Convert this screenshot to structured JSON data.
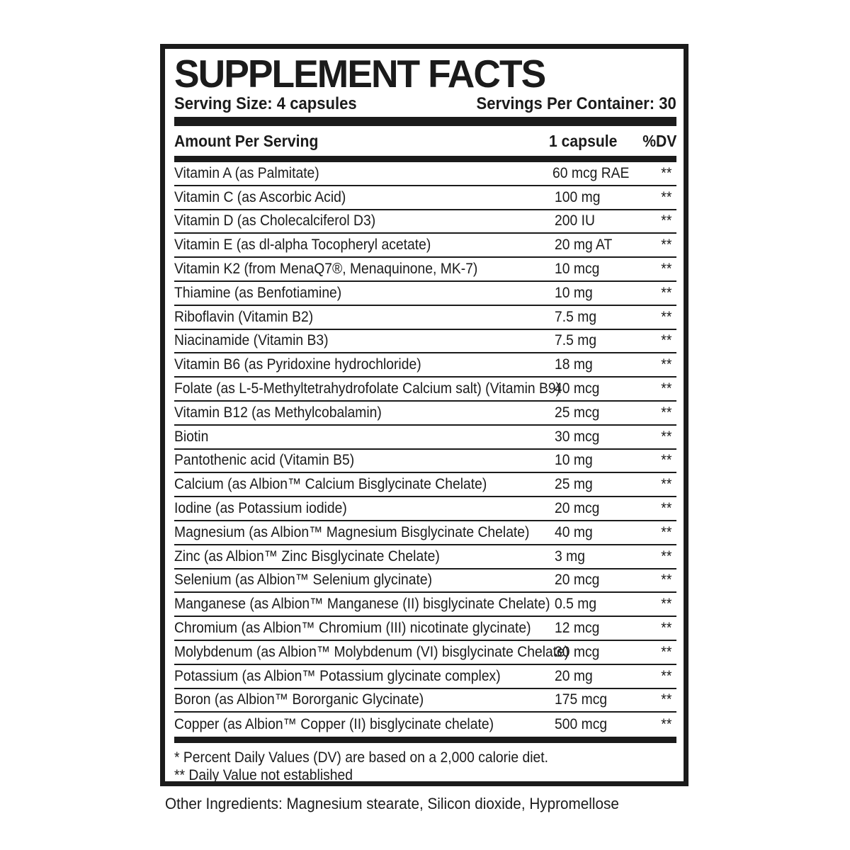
{
  "colors": {
    "ink": "#1b1b1b",
    "background": "#ffffff"
  },
  "header": {
    "title": "SUPPLEMENT FACTS",
    "serving_size": "Serving Size: 4 capsules",
    "servings_per_container": "Servings Per Container: 30"
  },
  "table": {
    "columns": {
      "nutrient": "Amount Per Serving",
      "amount": "1 capsule",
      "dv": "%DV"
    },
    "rows": [
      {
        "name": "Vitamin A (as Palmitate)",
        "amount": "60 mcg RAE",
        "dv": "**"
      },
      {
        "name": "Vitamin C (as Ascorbic Acid)",
        "amount": "100 mg",
        "dv": "**"
      },
      {
        "name": "Vitamin D (as Cholecalciferol D3)",
        "amount": "200 IU",
        "dv": "**"
      },
      {
        "name": "Vitamin E (as dl-alpha Tocopheryl acetate)",
        "amount": "20 mg AT",
        "dv": "**"
      },
      {
        "name": "Vitamin K2 (from MenaQ7®, Menaquinone, MK-7)",
        "amount": "10 mcg",
        "dv": "**"
      },
      {
        "name": "Thiamine (as Benfotiamine)",
        "amount": "10 mg",
        "dv": "**"
      },
      {
        "name": "Riboflavin (Vitamin B2)",
        "amount": "7.5 mg",
        "dv": "**"
      },
      {
        "name": "Niacinamide (Vitamin B3)",
        "amount": "7.5 mg",
        "dv": "**"
      },
      {
        "name": "Vitamin B6 (as Pyridoxine hydrochloride)",
        "amount": "18 mg",
        "dv": "**"
      },
      {
        "name": "Folate (as L-5-Methyltetrahydrofolate Calcium salt) (Vitamin B9)",
        "amount": "40 mcg",
        "dv": "**"
      },
      {
        "name": "Vitamin B12 (as Methylcobalamin)",
        "amount": "25 mcg",
        "dv": "**"
      },
      {
        "name": "Biotin",
        "amount": "30 mcg",
        "dv": "**"
      },
      {
        "name": "Pantothenic acid (Vitamin B5)",
        "amount": "10 mg",
        "dv": "**"
      },
      {
        "name": "Calcium (as Albion™ Calcium Bisglycinate Chelate)",
        "amount": "25 mg",
        "dv": "**"
      },
      {
        "name": "Iodine (as Potassium iodide)",
        "amount": "20 mcg",
        "dv": "**"
      },
      {
        "name": "Magnesium (as Albion™ Magnesium Bisglycinate Chelate)",
        "amount": "40 mg",
        "dv": "**"
      },
      {
        "name": "Zinc (as Albion™ Zinc Bisglycinate Chelate)",
        "amount": "3 mg",
        "dv": "**"
      },
      {
        "name": "Selenium (as Albion™ Selenium glycinate)",
        "amount": "20 mcg",
        "dv": "**"
      },
      {
        "name": "Manganese (as Albion™ Manganese (II) bisglycinate Chelate)",
        "amount": "0.5 mg",
        "dv": "**"
      },
      {
        "name": "Chromium (as Albion™ Chromium (III) nicotinate glycinate)",
        "amount": "12 mcg",
        "dv": "**"
      },
      {
        "name": "Molybdenum (as Albion™ Molybdenum (VI) bisglycinate Chelate)",
        "amount": "30 mcg",
        "dv": "**"
      },
      {
        "name": "Potassium (as Albion™ Potassium glycinate complex)",
        "amount": "20 mg",
        "dv": "**"
      },
      {
        "name": "Boron (as Albion™ Bororganic Glycinate)",
        "amount": "175 mcg",
        "dv": "**"
      },
      {
        "name": "Copper (as Albion™ Copper (II) bisglycinate chelate)",
        "amount": "500 mcg",
        "dv": "**"
      }
    ]
  },
  "footnotes": [
    "* Percent Daily Values (DV) are based on a 2,000 calorie diet.",
    "** Daily Value not established"
  ],
  "other_ingredients": "Other Ingredients: Magnesium stearate, Silicon dioxide, Hypromellose"
}
